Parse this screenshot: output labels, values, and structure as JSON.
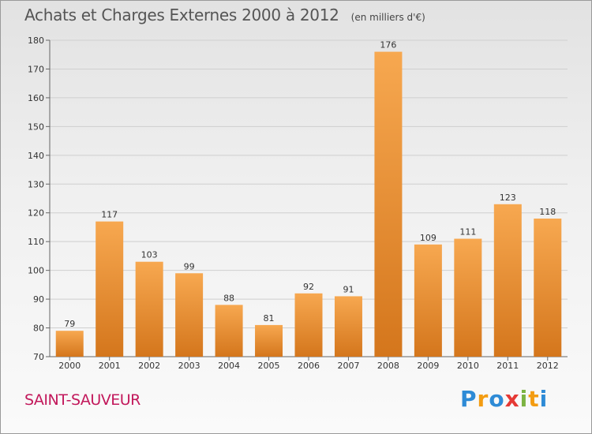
{
  "title": "Achats et Charges Externes 2000 à 2012",
  "unit": "(en milliers d'€)",
  "place": "SAINT-SAUVEUR",
  "brand": {
    "name": "Proxiti",
    "letters": [
      {
        "char": "P",
        "color": "#2e8bd6"
      },
      {
        "char": "r",
        "color": "#f39c12"
      },
      {
        "char": "o",
        "color": "#2e8bd6"
      },
      {
        "char": "x",
        "color": "#e53935"
      },
      {
        "char": "i",
        "color": "#7cb342"
      },
      {
        "char": "t",
        "color": "#f39c12"
      },
      {
        "char": "i",
        "color": "#2e8bd6"
      }
    ]
  },
  "colors": {
    "bar_light": "#f7a850",
    "bar_dark": "#d4761c",
    "grid": "#cfcfcf",
    "place": "#c2185b"
  },
  "chart_data": {
    "type": "bar",
    "categories": [
      "2000",
      "2001",
      "2002",
      "2003",
      "2004",
      "2005",
      "2006",
      "2007",
      "2008",
      "2009",
      "2010",
      "2011",
      "2012"
    ],
    "values": [
      79,
      117,
      103,
      99,
      88,
      81,
      92,
      91,
      176,
      109,
      111,
      123,
      118
    ],
    "ylim": [
      70,
      180
    ],
    "yticks": [
      70,
      80,
      90,
      100,
      110,
      120,
      130,
      140,
      150,
      160,
      170,
      180
    ],
    "grid": true,
    "legend": "none"
  }
}
